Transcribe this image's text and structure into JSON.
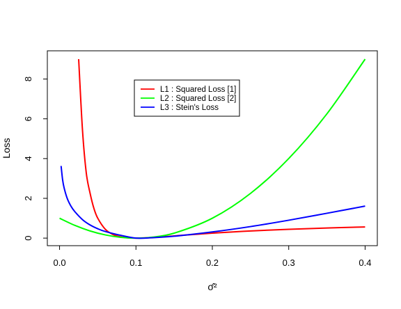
{
  "chart_data": {
    "type": "line",
    "title": "",
    "xlabel": "σ̂²",
    "ylabel": "Loss",
    "xlim": [
      -0.016,
      0.416
    ],
    "ylim": [
      -0.38,
      9.42
    ],
    "xticks": [
      0.0,
      0.1,
      0.2,
      0.3,
      0.4
    ],
    "xtick_labels": [
      "0.0",
      "0.1",
      "0.2",
      "0.3",
      "0.4"
    ],
    "yticks": [
      0,
      2,
      4,
      6,
      8
    ],
    "ytick_labels": [
      "0",
      "2",
      "4",
      "6",
      "8"
    ],
    "grid": false,
    "legend_position": "top-center",
    "series": [
      {
        "name": "L1 : Squared Loss [1]",
        "color": "#ff0000",
        "x": [
          0.025,
          0.03,
          0.035,
          0.04,
          0.045,
          0.05,
          0.06,
          0.07,
          0.08,
          0.09,
          0.1,
          0.12,
          0.15,
          0.2,
          0.25,
          0.3,
          0.35,
          0.4
        ],
        "y": [
          9.0,
          5.44,
          3.27,
          2.25,
          1.49,
          1.0,
          0.44,
          0.18,
          0.0625,
          0.0123,
          0.0,
          0.0278,
          0.111,
          0.25,
          0.36,
          0.444,
          0.51,
          0.5625
        ]
      },
      {
        "name": "L2 : Squared Loss [2]",
        "color": "#00ff00",
        "x": [
          0.0,
          0.02,
          0.04,
          0.06,
          0.08,
          0.1,
          0.12,
          0.15,
          0.2,
          0.25,
          0.3,
          0.35,
          0.4
        ],
        "y": [
          1.0,
          0.64,
          0.36,
          0.16,
          0.04,
          0.0,
          0.04,
          0.25,
          1.0,
          2.25,
          4.0,
          6.25,
          9.0
        ]
      },
      {
        "name": "L3 : Stein's Loss",
        "color": "#0000ff",
        "x": [
          0.002,
          0.004,
          0.006,
          0.01,
          0.015,
          0.02,
          0.03,
          0.04,
          0.05,
          0.06,
          0.08,
          0.1,
          0.12,
          0.15,
          0.2,
          0.25,
          0.3,
          0.35,
          0.4
        ],
        "y": [
          3.63,
          2.93,
          2.52,
          2.0,
          1.6,
          1.33,
          0.93,
          0.66,
          0.47,
          0.33,
          0.14,
          0.0,
          0.018,
          0.095,
          0.31,
          0.58,
          0.9,
          1.25,
          1.61
        ]
      }
    ]
  }
}
